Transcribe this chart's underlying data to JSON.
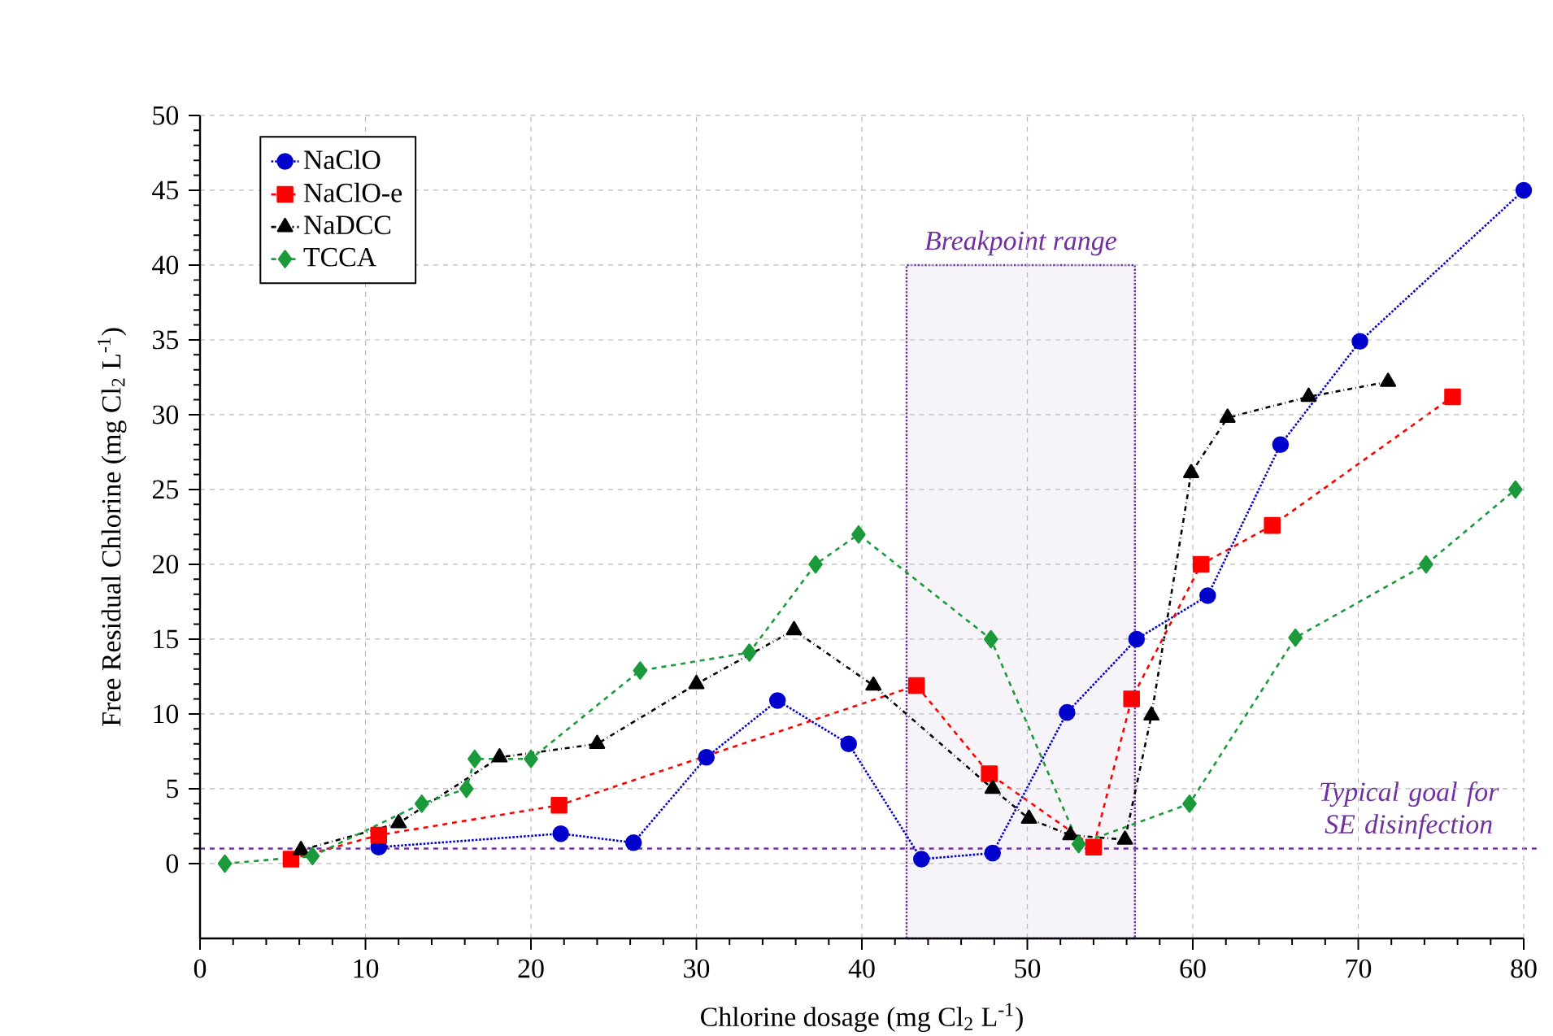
{
  "chart_data": {
    "type": "line",
    "xlabel": "Chlorine dosage (mg Cl$_{2}$ L$^{-1}$)",
    "ylabel": "Free Residual Chlorine (mg Cl$_{2}$ L$^{-1}$)",
    "xlim": [
      0,
      80
    ],
    "xticks": [
      0,
      10,
      20,
      30,
      40,
      50,
      60,
      70,
      80
    ],
    "ylim": [
      -5,
      50
    ],
    "yticks": [
      0,
      5,
      10,
      15,
      20,
      25,
      30,
      35,
      40,
      45,
      50
    ],
    "grid": true,
    "legend": "top left",
    "series": [
      {
        "name": "NaClO",
        "color": "#0000cc",
        "marker": "circle",
        "line_style": "dotted",
        "x": [
          10.8,
          21.8,
          26.2,
          30.6,
          34.9,
          39.2,
          43.6,
          47.9,
          52.4,
          56.6,
          60.9,
          65.3,
          70.1,
          80.0
        ],
        "values": [
          1.1,
          2.0,
          1.4,
          7.1,
          10.9,
          8.0,
          0.3,
          0.7,
          10.1,
          15.0,
          17.9,
          28.0,
          34.9,
          45.0
        ]
      },
      {
        "name": "NaClO-e",
        "color": "#ff0000",
        "marker": "square",
        "line_style": "dashed",
        "x": [
          5.5,
          10.8,
          21.7,
          43.3,
          47.7,
          54.0,
          56.3,
          60.5,
          64.8,
          75.7
        ],
        "values": [
          0.3,
          1.9,
          3.9,
          11.9,
          6.0,
          1.1,
          11.0,
          20.0,
          22.6,
          31.2
        ]
      },
      {
        "name": "NaDCC",
        "color": "#000000",
        "marker": "triangle",
        "line_style": "dashdot",
        "x": [
          6.1,
          12.0,
          18.1,
          24.0,
          30.0,
          35.9,
          40.7,
          47.9,
          50.1,
          52.6,
          55.9,
          57.5,
          59.9,
          62.1,
          67.0,
          71.8
        ],
        "values": [
          0.9,
          2.7,
          7.1,
          8.0,
          12.0,
          15.6,
          11.9,
          5.0,
          3.0,
          1.9,
          1.6,
          9.9,
          26.1,
          29.8,
          31.2,
          32.2
        ]
      },
      {
        "name": "TCCA",
        "color": "#1a9a3a",
        "marker": "diamond",
        "line_style": "dashed",
        "x": [
          1.5,
          6.8,
          13.4,
          16.1,
          16.6,
          20.0,
          26.6,
          33.2,
          37.2,
          39.8,
          47.8,
          53.1,
          59.8,
          66.2,
          74.1,
          79.5
        ],
        "values": [
          0.0,
          0.5,
          4.0,
          5.0,
          7.0,
          7.0,
          12.9,
          14.1,
          20.0,
          22.0,
          15.0,
          1.3,
          4.0,
          15.1,
          20.0,
          25.0
        ]
      }
    ],
    "ref_lines": [
      {
        "axis": "y",
        "value": 1,
        "label": "Typical goal for SE disinfection",
        "color": "#7030a0",
        "line_style": "dashed"
      }
    ],
    "bands": [
      {
        "axis": "x",
        "from": 42.7,
        "to": 56.5,
        "label": "Breakpoint range",
        "color": "#7030a0"
      }
    ]
  }
}
